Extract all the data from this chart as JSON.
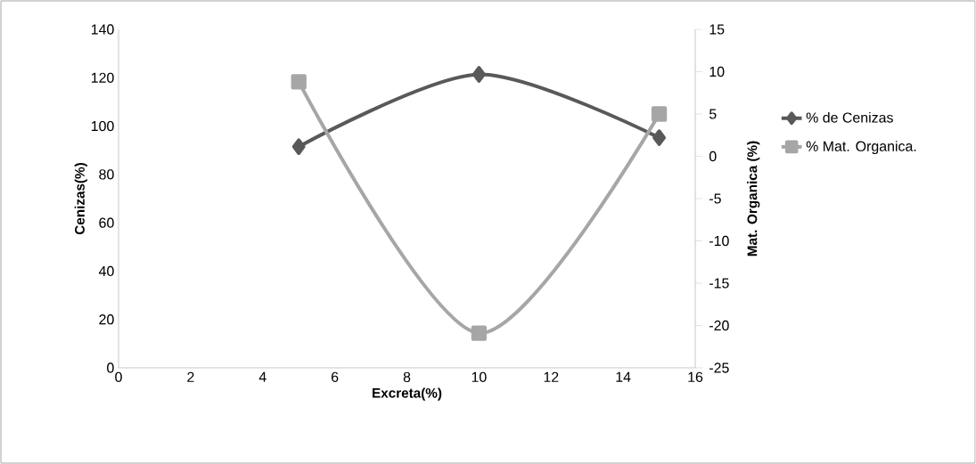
{
  "chart_data": {
    "type": "line",
    "xlabel": "Excreta(%)",
    "ylabel": "Cenizas(%)",
    "y2label": "Mat. Organica (%)",
    "x": [
      5,
      10,
      15
    ],
    "series": [
      {
        "name": "% de Cenizas",
        "color": "#595959",
        "values": [
          91.5,
          121.4,
          95.2
        ],
        "marker": "diamond"
      },
      {
        "name": "% Mat. Organica.",
        "color": "#a6a6a6",
        "values": [
          8.8,
          -20.9,
          5.0
        ],
        "marker": "square",
        "axis": "y2"
      }
    ],
    "xlim": [
      0,
      16
    ],
    "xticks": [
      0,
      2,
      4,
      6,
      8,
      10,
      12,
      14,
      16
    ],
    "ylim": [
      0,
      140
    ],
    "yticks": [
      0,
      20,
      40,
      60,
      80,
      100,
      120,
      140
    ],
    "y2lim": [
      -25,
      15
    ],
    "y2ticks": [
      -25,
      -20,
      -15,
      -10,
      -5,
      0,
      5,
      10,
      15
    ],
    "grid": false,
    "legend": "right",
    "line_style": "solid"
  }
}
